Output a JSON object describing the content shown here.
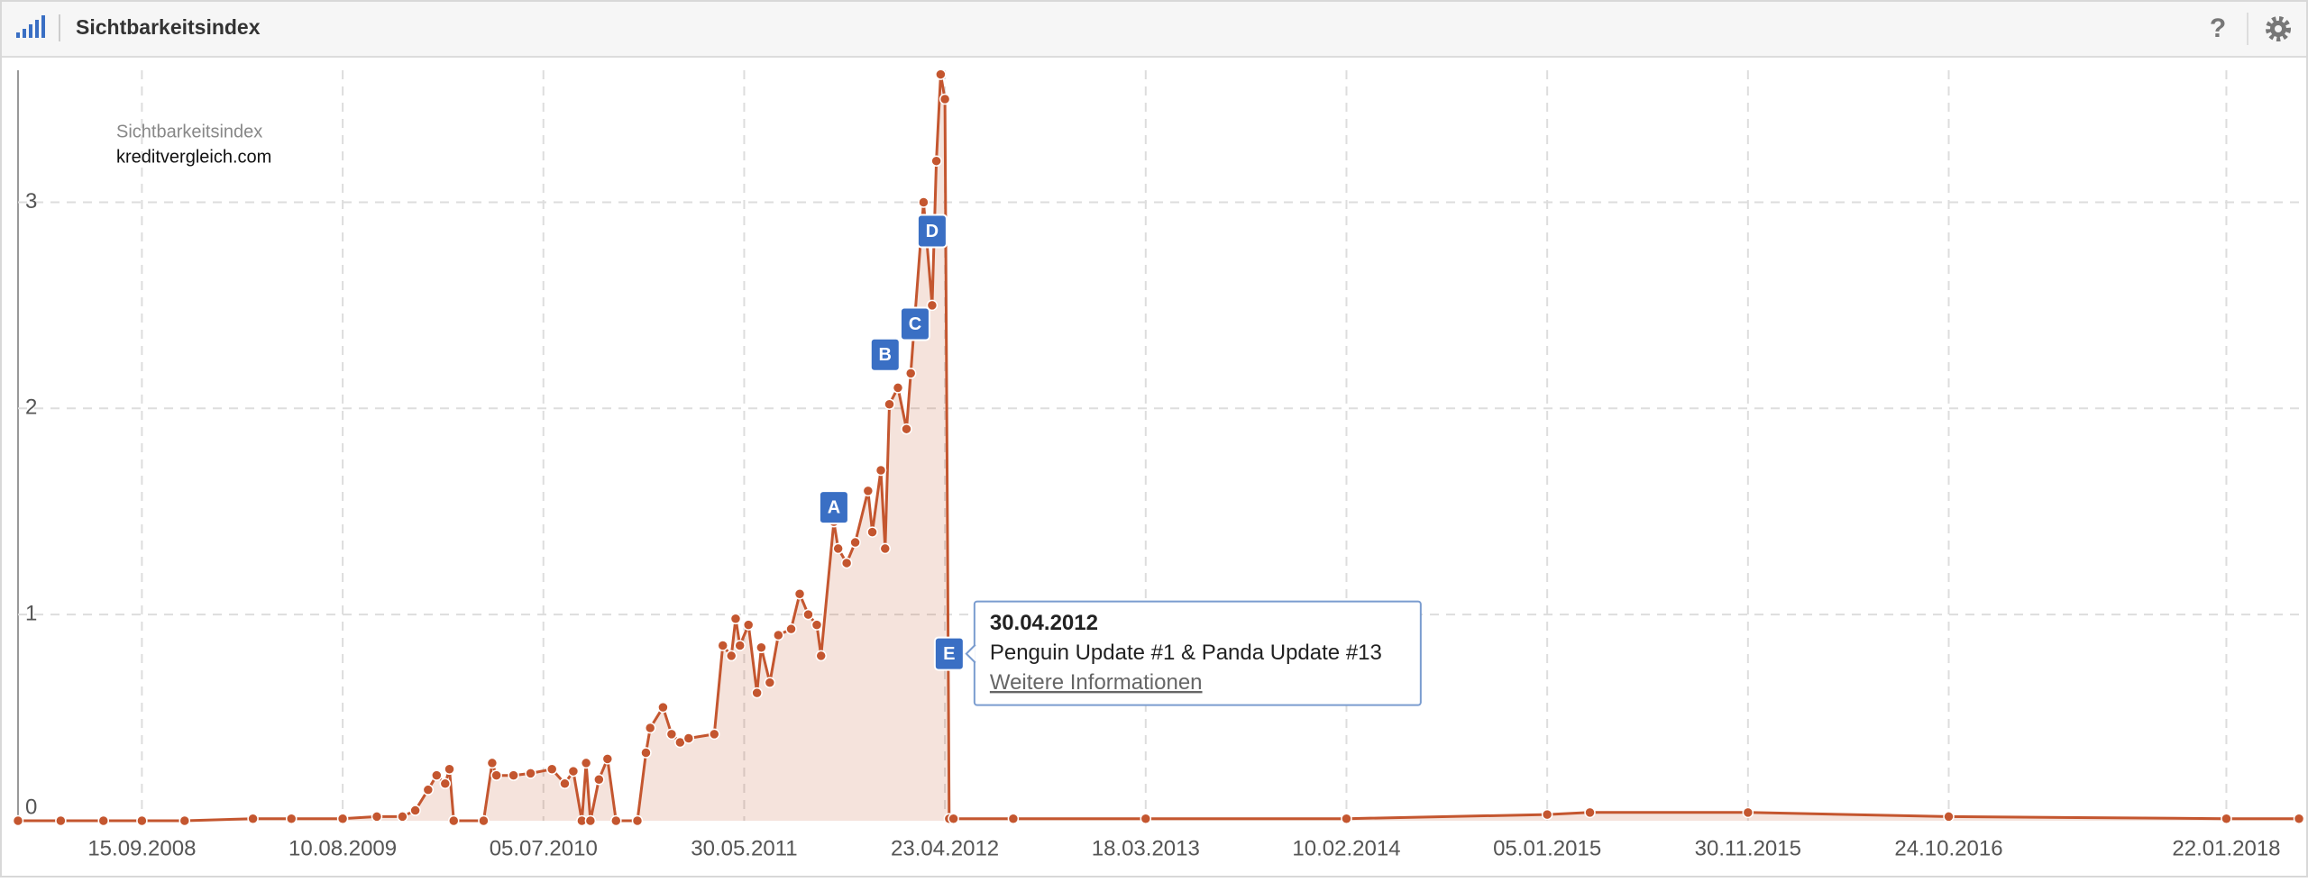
{
  "header": {
    "title": "Sichtbarkeitsindex",
    "help_icon": "?"
  },
  "chart_data": {
    "type": "line",
    "legend": {
      "title": "Sichtbarkeitsindex",
      "domain": "kreditvergleich.com"
    },
    "x": [
      "25.02.2008",
      "05.05.2008",
      "14.07.2008",
      "15.09.2008",
      "24.11.2008",
      "16.03.2009",
      "18.05.2009",
      "10.08.2009",
      "05.10.2009",
      "16.11.2009",
      "07.12.2009",
      "28.12.2009",
      "11.01.2010",
      "25.01.2010",
      "01.02.2010",
      "08.02.2010",
      "29.03.2010",
      "12.04.2010",
      "19.04.2010",
      "17.05.2010",
      "14.06.2010",
      "19.07.2010",
      "09.08.2010",
      "23.08.2010",
      "06.09.2010",
      "13.09.2010",
      "20.09.2010",
      "04.10.2010",
      "18.10.2010",
      "01.11.2010",
      "06.12.2010",
      "20.12.2010",
      "27.12.2010",
      "17.01.2011",
      "31.01.2011",
      "14.02.2011",
      "28.02.2011",
      "11.04.2011",
      "25.04.2011",
      "09.05.2011",
      "16.05.2011",
      "23.05.2011",
      "06.06.2011",
      "20.06.2011",
      "27.06.2011",
      "11.07.2011",
      "25.07.2011",
      "15.08.2011",
      "29.08.2011",
      "12.09.2011",
      "26.09.2011",
      "03.10.2011",
      "24.10.2011",
      "31.10.2011",
      "14.11.2011",
      "28.11.2011",
      "19.12.2011",
      "26.12.2011",
      "09.01.2012",
      "16.01.2012",
      "23.01.2012",
      "06.02.2012",
      "20.02.2012",
      "27.02.2012",
      "05.03.2012",
      "19.03.2012",
      "02.04.2012",
      "09.04.2012",
      "16.04.2012",
      "23.04.2012",
      "30.04.2012",
      "07.05.2012",
      "13.08.2012",
      "18.03.2013",
      "10.02.2014",
      "05.01.2015",
      "16.03.2015",
      "30.11.2015",
      "24.10.2016",
      "22.01.2018",
      "21.05.2018"
    ],
    "series": [
      {
        "name": "kreditvergleich.com",
        "color": "#c4562f",
        "values": [
          0,
          0,
          0,
          0,
          0,
          0.01,
          0.01,
          0.01,
          0.02,
          0.02,
          0.05,
          0.15,
          0.22,
          0.18,
          0.25,
          0,
          0,
          0.28,
          0.22,
          0.22,
          0.23,
          0.25,
          0.18,
          0.24,
          0,
          0.28,
          0,
          0.2,
          0.3,
          0,
          0,
          0.33,
          0.45,
          0.55,
          0.42,
          0.38,
          0.4,
          0.42,
          0.85,
          0.8,
          0.98,
          0.85,
          0.95,
          0.62,
          0.84,
          0.67,
          0.9,
          0.93,
          1.1,
          1.0,
          0.95,
          0.8,
          1.45,
          1.32,
          1.25,
          1.35,
          1.6,
          1.4,
          1.7,
          1.32,
          2.02,
          2.1,
          1.9,
          2.17,
          2.45,
          3.0,
          2.5,
          3.2,
          3.62,
          3.5,
          0.01,
          0.01,
          0.01,
          0.01,
          0.01,
          0.03,
          0.04,
          0.04,
          0.02,
          0.01,
          0.01
        ]
      }
    ],
    "xlim": [
      "25.02.2008",
      "21.05.2018"
    ],
    "xticks": [
      "15.09.2008",
      "10.08.2009",
      "05.07.2010",
      "30.05.2011",
      "23.04.2012",
      "18.03.2013",
      "10.02.2014",
      "05.01.2015",
      "30.11.2015",
      "24.10.2016",
      "22.01.2018"
    ],
    "ylim": [
      0,
      3.64
    ],
    "yticks": [
      0,
      1,
      2,
      3
    ],
    "grid": true,
    "annotations": [
      {
        "x": "24.10.2011",
        "y": 1.52,
        "label": "A"
      },
      {
        "x": "16.01.2012",
        "y": 2.26,
        "label": "B"
      },
      {
        "x": "05.03.2012",
        "y": 2.41,
        "label": "C"
      },
      {
        "x": "02.04.2012",
        "y": 2.86,
        "label": "D"
      },
      {
        "x": "30.04.2012",
        "y": 0.81,
        "label": "E"
      }
    ],
    "tooltip": {
      "date": "30.04.2012",
      "text": "Penguin Update #1 & Panda Update #13",
      "link": "Weitere Informationen"
    }
  }
}
